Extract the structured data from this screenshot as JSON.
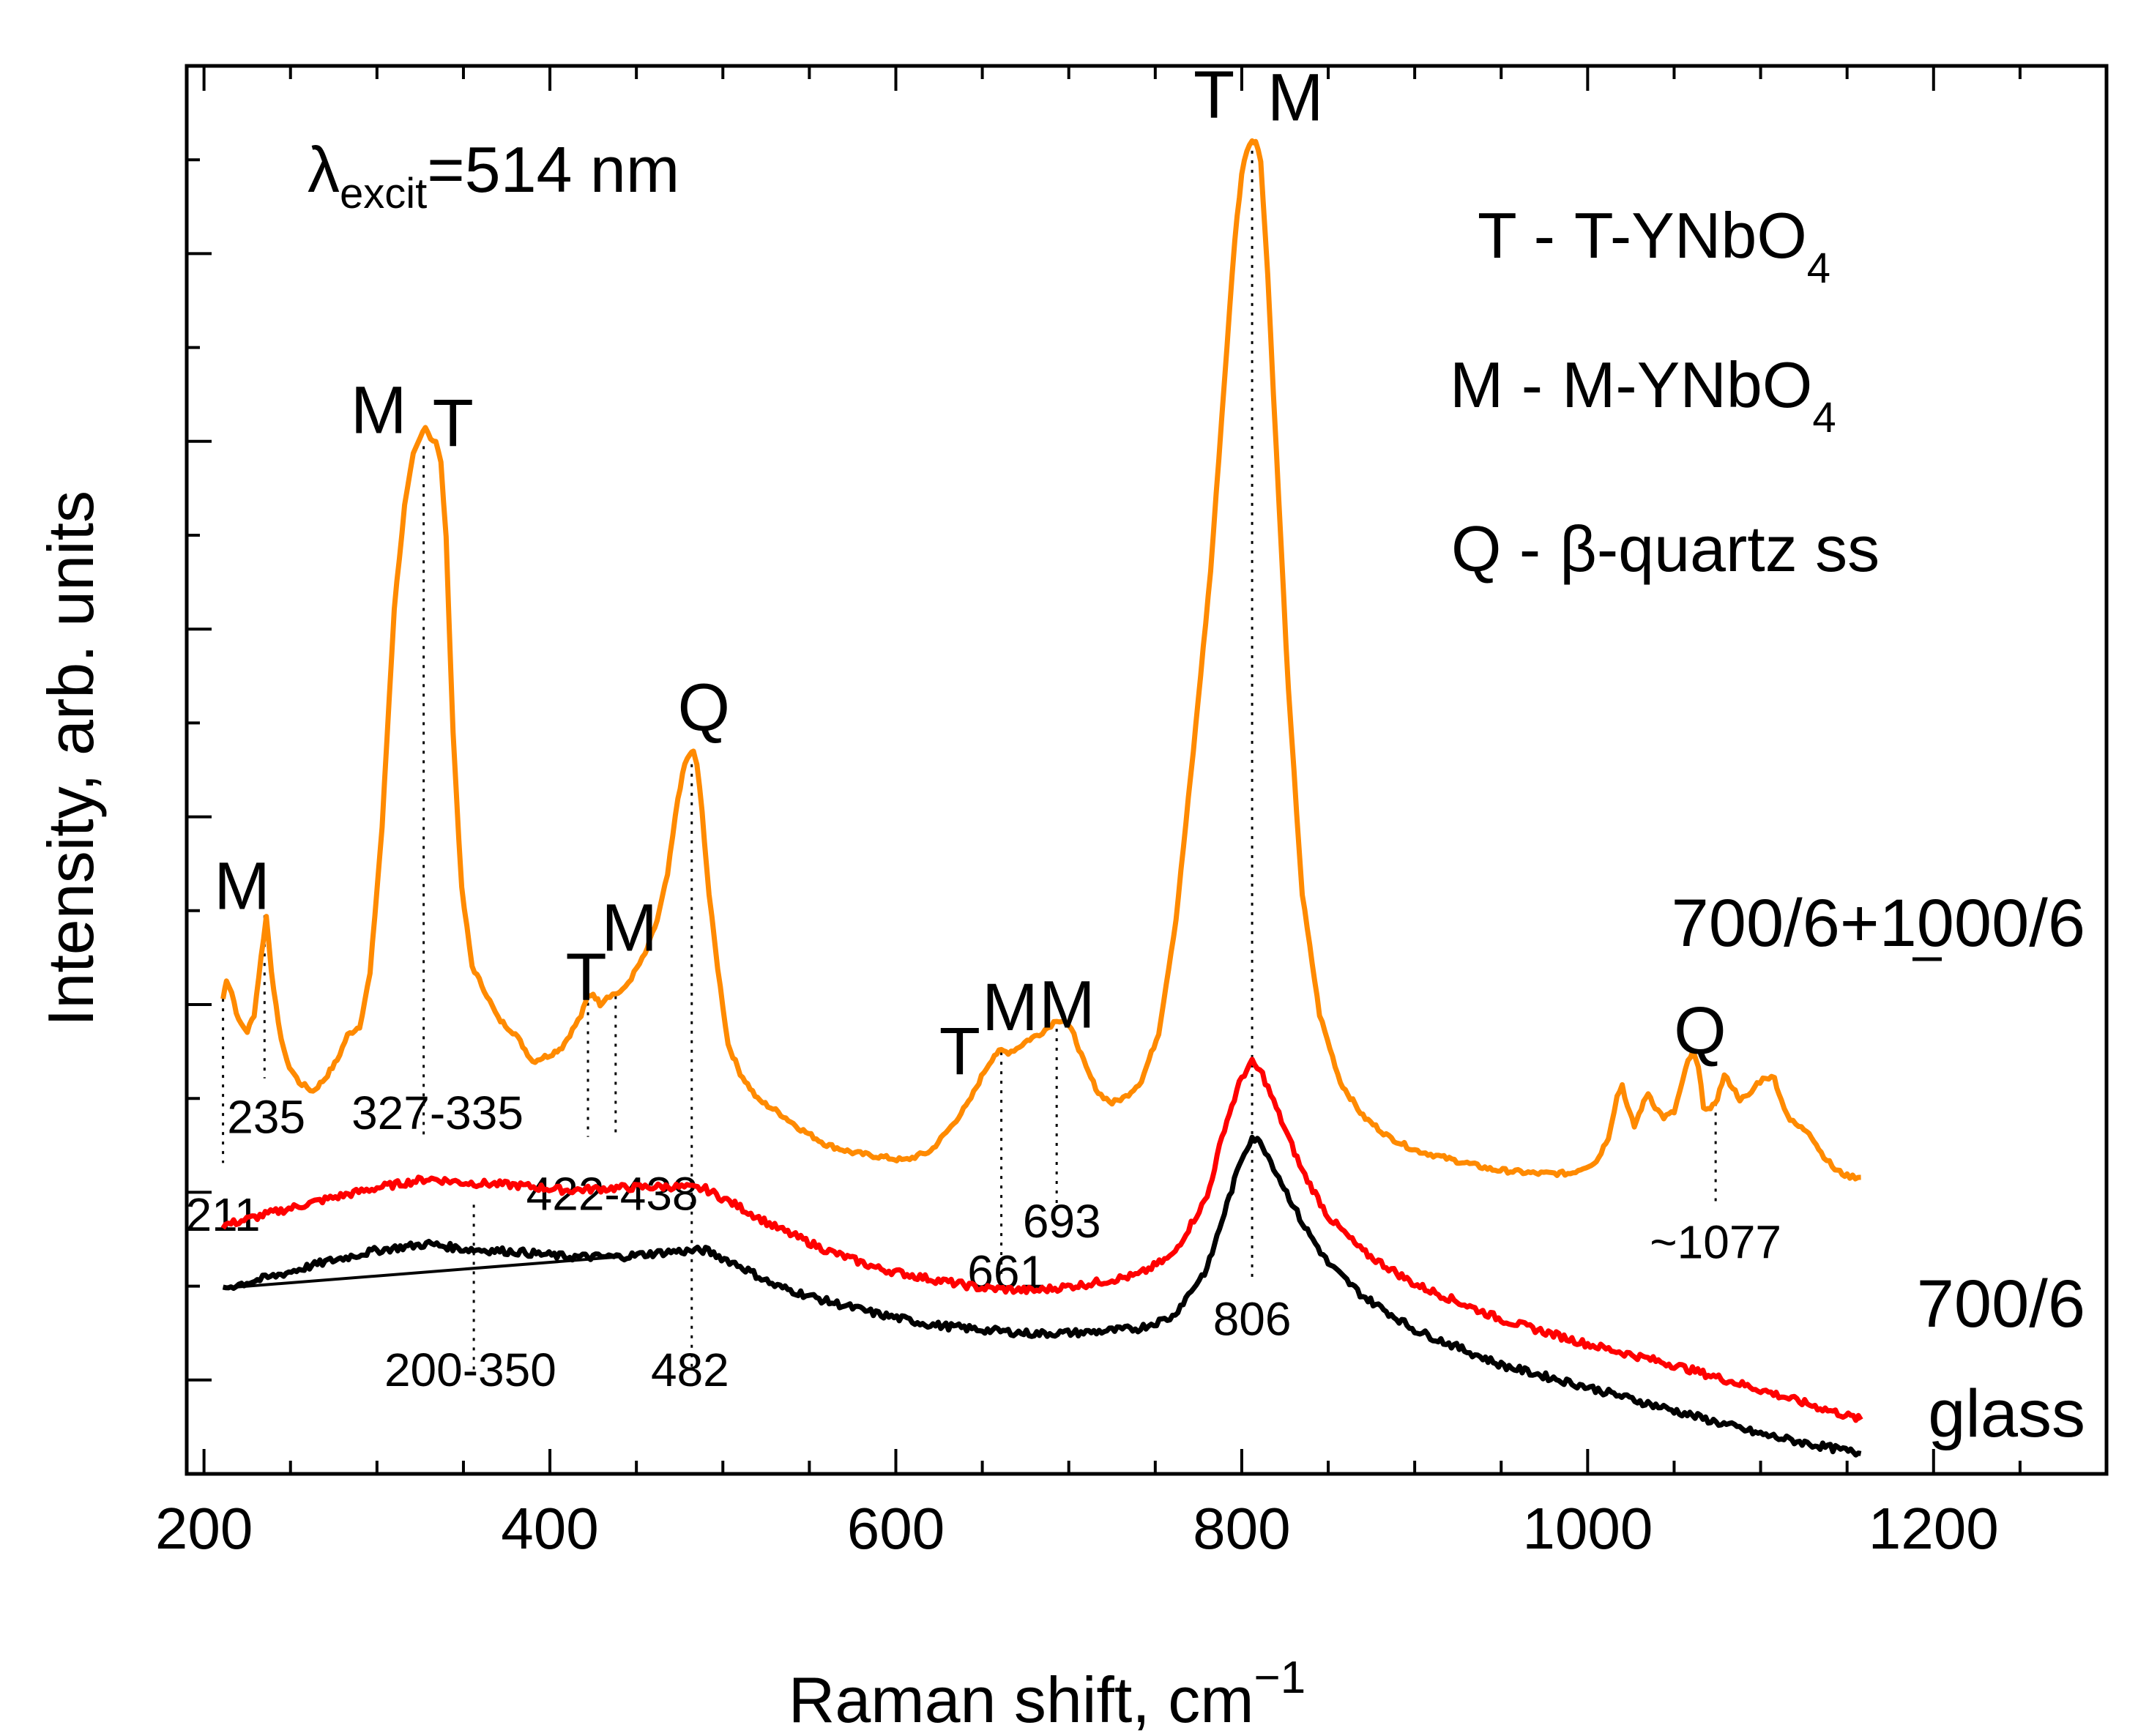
{
  "chart_data": {
    "type": "line",
    "title": "",
    "xlabel": "Raman shift, cm",
    "xlabel_sup": "−1",
    "ylabel": "Intensity, arb. units",
    "xlim": [
      190,
      1300
    ],
    "ylim": [
      0,
      100
    ],
    "x_ticks": [
      200,
      400,
      600,
      800,
      1000,
      1200
    ],
    "x_tick_labels": [
      "200",
      "400",
      "600",
      "800",
      "1000",
      "1200"
    ],
    "grid": false,
    "excitation": {
      "symbol": "λ",
      "sub": "excit",
      "rest": "=514 nm"
    },
    "legend": [
      {
        "code": "T -",
        "name": "T-YNbO",
        "sub": "4"
      },
      {
        "code": "M -",
        "name": "M-YNbO",
        "sub": "4"
      },
      {
        "code": "Q -",
        "name": "β-quartz ss",
        "sub": ""
      }
    ],
    "series": [
      {
        "name": "700/6+1000/6",
        "label_underline_char": "0",
        "color": "#ff8a00",
        "x": [
          211,
          213,
          216,
          220,
          225,
          229,
          233,
          236,
          239,
          243,
          248,
          255,
          263,
          270,
          277,
          283,
          290,
          296,
          303,
          310,
          316,
          321,
          325,
          328,
          331,
          334,
          337,
          340,
          344,
          349,
          355,
          362,
          370,
          380,
          390,
          400,
          407,
          413,
          418,
          422,
          425,
          429,
          433,
          438,
          442,
          447,
          455,
          462,
          468,
          474,
          478,
          481,
          483,
          485,
          488,
          492,
          497,
          503,
          510,
          520,
          532,
          545,
          560,
          575,
          590,
          605,
          620,
          632,
          642,
          651,
          657,
          661,
          665,
          670,
          676,
          683,
          688,
          693,
          698,
          703,
          710,
          717,
          725,
          733,
          742,
          752,
          762,
          772,
          782,
          790,
          796,
          800,
          803,
          806,
          808,
          811,
          815,
          820,
          827,
          835,
          845,
          857,
          870,
          885,
          900,
          920,
          945,
          970,
          990,
          1005,
          1012,
          1017,
          1020,
          1023,
          1027,
          1031,
          1035,
          1039,
          1044,
          1050,
          1055,
          1058,
          1061,
          1064,
          1067,
          1071,
          1075,
          1079,
          1084,
          1088,
          1093,
          1098,
          1103,
          1108,
          1112,
          1117,
          1122,
          1128,
          1135,
          1143,
          1150,
          1158
        ],
        "y": [
          34.6,
          36.1,
          35.1,
          32.9,
          32.1,
          33.4,
          37.8,
          40.9,
          36.8,
          32.6,
          29.7,
          28.2,
          27.5,
          28.5,
          29.9,
          31.8,
          32.5,
          36.5,
          47.8,
          64.6,
          72.4,
          76.3,
          77.6,
          78.6,
          77.6,
          77.4,
          75.7,
          69.9,
          55.0,
          43.0,
          37.1,
          35.3,
          33.1,
          31.9,
          29.8,
          30.3,
          30.9,
          32.2,
          33.3,
          34.8,
          35.0,
          34.2,
          34.8,
          35.0,
          35.2,
          36.2,
          38.0,
          40.6,
          44.1,
          50.0,
          52.6,
          53.4,
          53.5,
          52.6,
          48.9,
          42.6,
          37.0,
          31.1,
          28.9,
          26.9,
          25.9,
          24.6,
          23.4,
          22.8,
          22.5,
          22.2,
          22.9,
          24.8,
          26.6,
          29.0,
          30.3,
          30.6,
          30.5,
          30.8,
          31.4,
          31.9,
          32.4,
          33.0,
          32.9,
          31.8,
          29.3,
          27.4,
          26.6,
          27.1,
          28.3,
          32.0,
          40.7,
          53.6,
          67.4,
          82.0,
          92.9,
          97.9,
          99.8,
          100.5,
          100.4,
          98.9,
          90.2,
          76.6,
          58.2,
          42.6,
          33.4,
          28.2,
          25.6,
          24.0,
          23.0,
          22.3,
          21.5,
          21.2,
          21.2,
          22.1,
          24.0,
          27.1,
          28.0,
          26.3,
          24.8,
          26.2,
          27.4,
          26.3,
          25.5,
          25.9,
          28.3,
          29.8,
          30.5,
          29.3,
          26.4,
          26.0,
          27.0,
          28.7,
          27.8,
          26.9,
          27.1,
          28.1,
          28.6,
          28.5,
          26.8,
          25.3,
          24.8,
          24.4,
          22.8,
          21.5,
          21.0,
          20.9
        ]
      },
      {
        "name": "700/6",
        "color": "#ff0000",
        "x": [
          211,
          240,
          270,
          300,
          330,
          350,
          380,
          410,
          440,
          470,
          490,
          510,
          530,
          560,
          590,
          620,
          650,
          680,
          710,
          740,
          760,
          780,
          790,
          800,
          806,
          812,
          820,
          835,
          850,
          870,
          900,
          950,
          1000,
          1050,
          1100,
          1130,
          1158
        ],
        "y": [
          17.2,
          18.2,
          19.2,
          20.1,
          20.8,
          20.5,
          20.3,
          19.9,
          20.1,
          20.2,
          20.0,
          18.6,
          17.1,
          15.3,
          13.9,
          13.1,
          12.4,
          12.2,
          12.7,
          13.4,
          14.9,
          19.4,
          24.7,
          28.6,
          29.7,
          28.8,
          26.2,
          21.4,
          17.9,
          15.2,
          12.7,
          10.0,
          8.1,
          6.5,
          4.6,
          3.4,
          2.3
        ]
      },
      {
        "name": "glass",
        "color": "#000000",
        "x": [
          211,
          240,
          270,
          300,
          330,
          350,
          380,
          410,
          440,
          470,
          490,
          510,
          530,
          560,
          590,
          620,
          650,
          680,
          710,
          740,
          760,
          780,
          790,
          800,
          806,
          812,
          820,
          835,
          850,
          870,
          900,
          950,
          1000,
          1050,
          1100,
          1130,
          1158
        ],
        "y": [
          12.4,
          13.3,
          14.4,
          15.3,
          15.8,
          15.4,
          15.2,
          14.8,
          14.8,
          15.2,
          15.3,
          14.1,
          12.6,
          11.4,
          10.4,
          9.6,
          9.2,
          8.9,
          9.0,
          9.3,
          10.2,
          13.9,
          18.2,
          22.4,
          24.0,
          23.4,
          21.3,
          17.4,
          14.3,
          11.8,
          9.2,
          6.5,
          4.8,
          3.0,
          1.2,
          0.4,
          -0.3
        ]
      }
    ],
    "baseline": {
      "x": [
        211,
        440
      ],
      "y": [
        12.4,
        14.8
      ]
    },
    "series_labels": [
      {
        "text": "700/6+1000",
        "after": "/6",
        "series": "700/6+1000/6"
      },
      {
        "text": "700/6",
        "series": "700/6"
      },
      {
        "text": "glass",
        "series": "glass"
      }
    ],
    "peak_letters": [
      {
        "text": "M",
        "x": 222,
        "y": 41.5
      },
      {
        "text": "M",
        "x": 301,
        "y": 78.0
      },
      {
        "text": "T",
        "x": 344,
        "y": 77.0
      },
      {
        "text": "T",
        "x": 421,
        "y": 34.5
      },
      {
        "text": "M",
        "x": 446,
        "y": 38.3
      },
      {
        "text": "Q",
        "x": 489,
        "y": 55.2
      },
      {
        "text": "T",
        "x": 637,
        "y": 28.8
      },
      {
        "text": "M",
        "x": 666,
        "y": 32.2
      },
      {
        "text": "M",
        "x": 699,
        "y": 32.4
      },
      {
        "text": "T",
        "x": 784,
        "y": 102.2
      },
      {
        "text": "M",
        "x": 831,
        "y": 102.0
      },
      {
        "text": "Q",
        "x": 1065,
        "y": 30.4
      }
    ],
    "peak_markers": [
      {
        "label": "211",
        "x": 211,
        "y_top": 34.6,
        "y_bottom": 22.0,
        "label_x": 211,
        "label_y": 16.8
      },
      {
        "label": "235",
        "x": 235,
        "y_top": 41.0,
        "y_bottom": 28.5,
        "label_x": 236,
        "label_y": 24.3
      },
      {
        "label": "327-335",
        "x": 327,
        "y_top": 77.0,
        "y_bottom": 24.0,
        "label_x": 335,
        "label_y": 24.6
      },
      {
        "label": "422-438",
        "x": 422,
        "y_top": 34.3,
        "y_bottom": 24.0,
        "label_x": 436,
        "label_y": 18.4
      },
      {
        "label": "422-438",
        "x": 438,
        "y_top": 34.8,
        "y_bottom": 24.0,
        "hide_label": true
      },
      {
        "label": "200-350",
        "x": 356,
        "y_top": 18.8,
        "y_bottom": 6.0,
        "label_x": 354,
        "label_y": 4.9
      },
      {
        "label": "482",
        "x": 482,
        "y_top": 52.6,
        "y_bottom": 6.0,
        "label_x": 481,
        "label_y": 4.9
      },
      {
        "label": "661",
        "x": 661,
        "y_top": 30.5,
        "y_bottom": 13.5,
        "label_x": 664,
        "label_y": 12.4
      },
      {
        "label": "693",
        "x": 693,
        "y_top": 32.3,
        "y_bottom": 18.5,
        "label_x": 696,
        "label_y": 16.3
      },
      {
        "label": "806",
        "x": 806,
        "y_top": 100.4,
        "y_bottom": 13.0,
        "label_x": 806,
        "label_y": 8.8
      },
      {
        "label": "~1077",
        "x": 1074,
        "y_top": 26.6,
        "y_bottom": 19.0,
        "label_x": 1074,
        "label_y": 14.7
      }
    ]
  }
}
